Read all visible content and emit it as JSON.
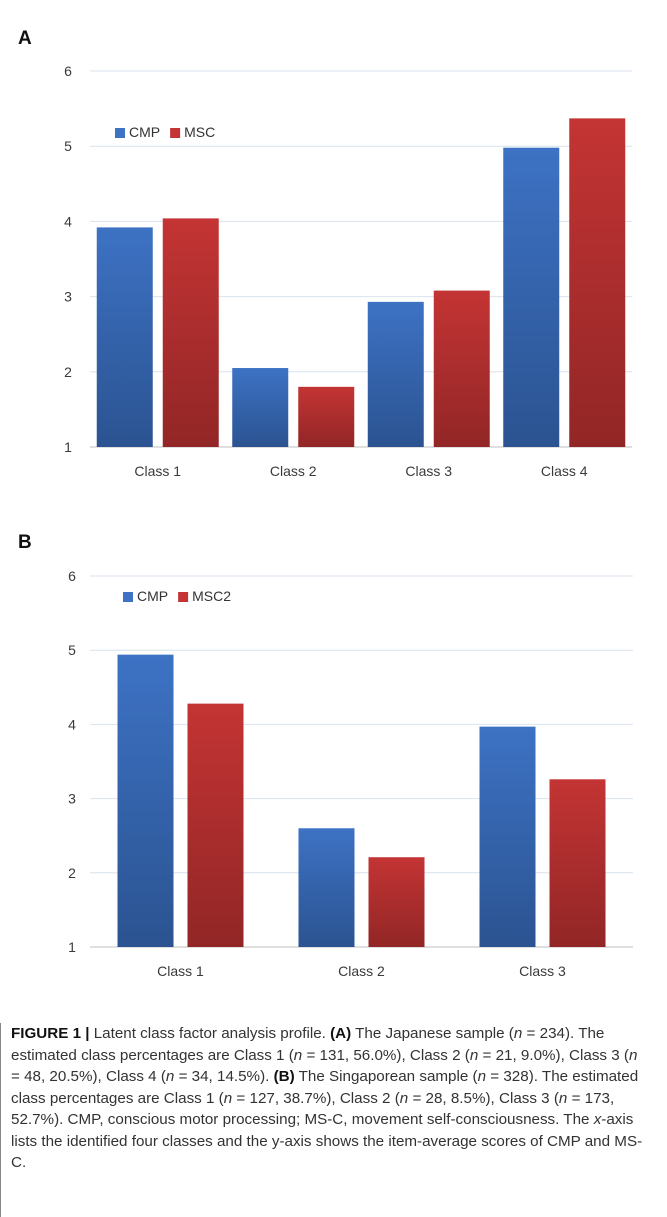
{
  "chart_data": [
    {
      "type": "bar",
      "panel_label": "A",
      "categories": [
        "Class 1",
        "Class 2",
        "Class 3",
        "Class 4"
      ],
      "series": [
        {
          "name": "CMP",
          "color": "#3d72c4",
          "values": [
            3.92,
            2.05,
            2.93,
            4.98
          ]
        },
        {
          "name": "MSC",
          "color": "#c43434",
          "values": [
            4.04,
            1.8,
            3.08,
            5.37
          ]
        }
      ],
      "ylim": [
        1,
        6
      ],
      "yticks": [
        "1",
        "2",
        "3",
        "4",
        "5",
        "6"
      ],
      "grid": true,
      "legend_position": "top-left"
    },
    {
      "type": "bar",
      "panel_label": "B",
      "categories": [
        "Class 1",
        "Class 2",
        "Class 3"
      ],
      "series": [
        {
          "name": "CMP",
          "color": "#3d72c4",
          "values": [
            4.94,
            2.6,
            3.97
          ]
        },
        {
          "name": "MSC2",
          "color": "#c43434",
          "values": [
            4.28,
            2.21,
            3.26
          ]
        }
      ],
      "ylim": [
        1,
        6
      ],
      "yticks": [
        "1",
        "2",
        "3",
        "4",
        "5",
        "6"
      ],
      "grid": true,
      "legend_position": "top-left"
    }
  ],
  "caption": {
    "figure_label": "FIGURE 1 |",
    "title": " Latent class factor analysis profile. ",
    "label_a": "(A)",
    "text_a1": " The Japanese sample (",
    "n_symbol": "n",
    "text_a2": " = 234). The estimated class percentages are Class 1 (",
    "text_a3": " = 131, 56.0%), Class 2 (",
    "text_a4": " = 21, 9.0%), Class 3 (",
    "text_a5": " = 48, 20.5%), Class 4 (",
    "text_a6": " = 34, 14.5%). ",
    "label_b": "(B)",
    "text_b1": " The Singaporean sample (",
    "text_b2": " = 328). The estimated class percentages are Class 1 (",
    "text_b3": " = 127, 38.7%), Class 2 (",
    "text_b4": " = 28, 8.5%), Class 3 (",
    "text_b5": " = 173, 52.7%). CMP, conscious motor processing; MS-C, movement self-consciousness. The ",
    "x_symbol": "x",
    "text_b6": "-axis lists the identified four classes and the y-axis shows the item-average scores of CMP and MS-C."
  }
}
